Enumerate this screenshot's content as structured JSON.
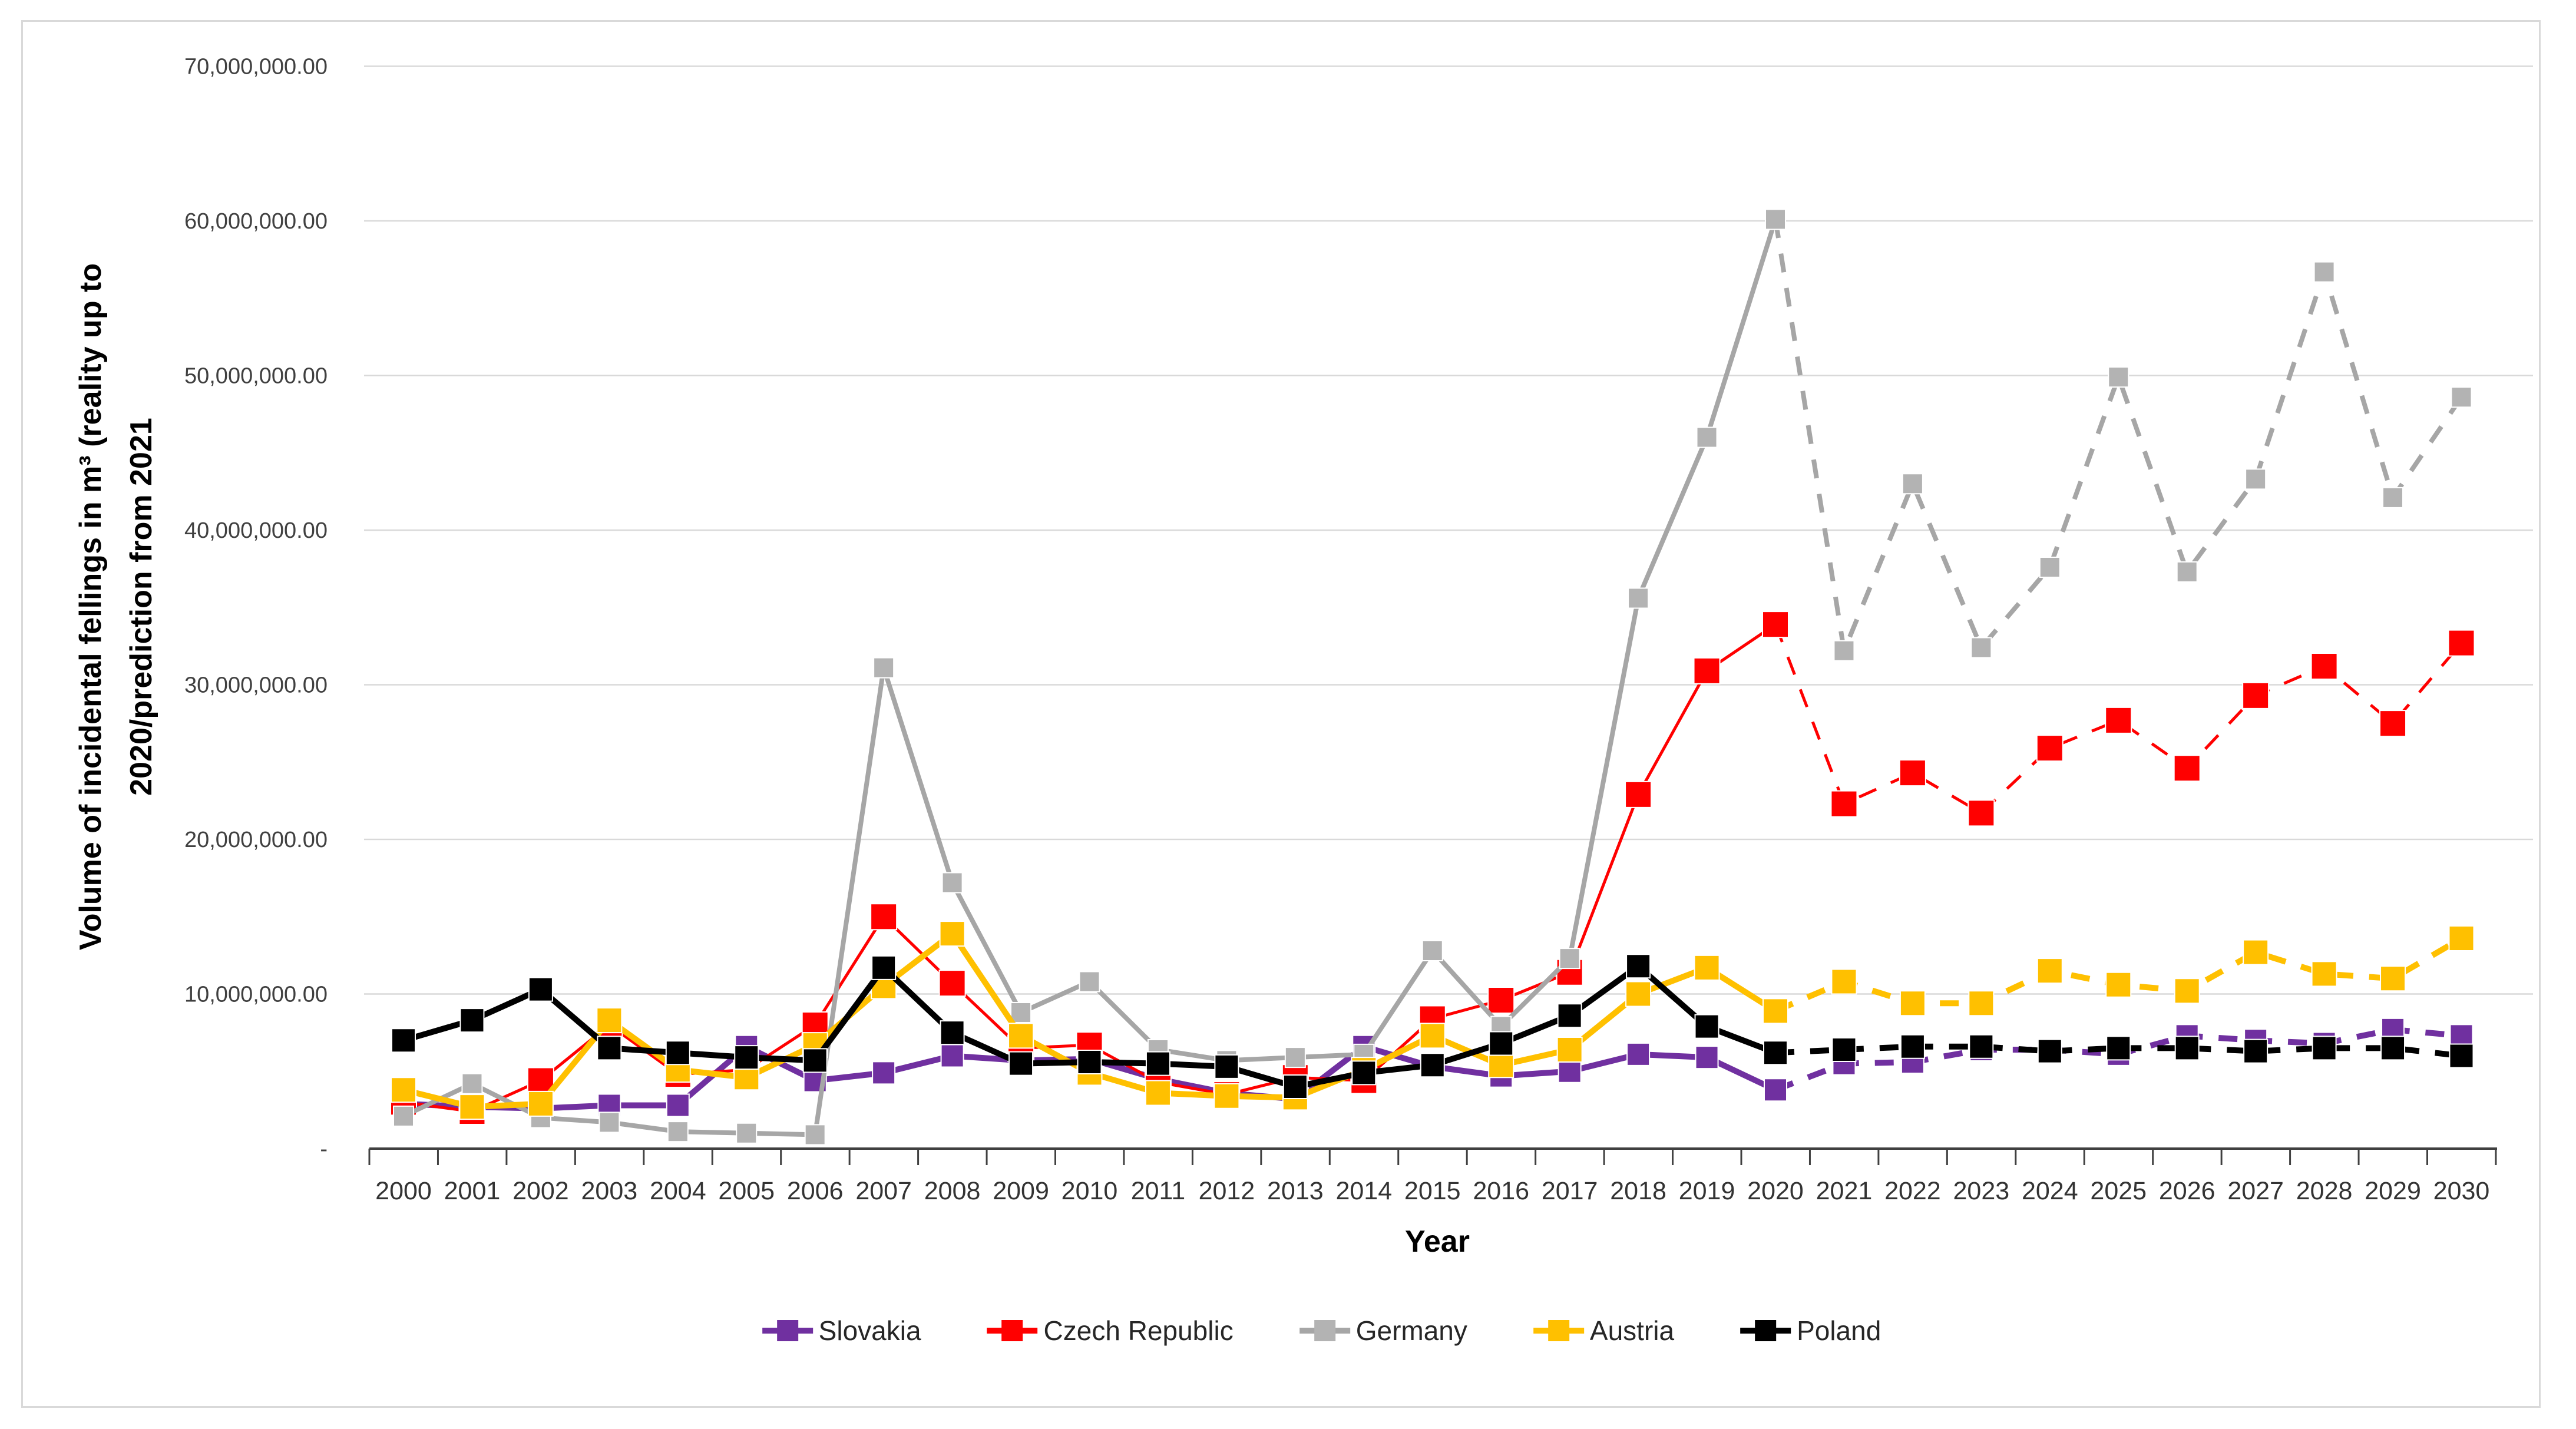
{
  "y_axis": {
    "title_line1": "Volume of incidental fellings in m³ (reality up to",
    "title_line2": "2020/prediction from 2021",
    "tick_values": [
      0,
      10000000,
      20000000,
      30000000,
      40000000,
      50000000,
      60000000,
      70000000
    ],
    "zero_label": "-",
    "tick_label_format": "#,##0.00"
  },
  "x_axis": {
    "title": "Year"
  },
  "chart_data": {
    "type": "line",
    "title": "",
    "xlabel": "Year",
    "ylabel": "Volume of incidental fellings in m³ (reality up to 2020/prediction from 2021",
    "ylim": [
      0,
      70000000
    ],
    "grid": "horizontal",
    "legend_position": "bottom",
    "prediction_dashed_from_year": 2020,
    "x": [
      2000,
      2001,
      2002,
      2003,
      2004,
      2005,
      2006,
      2007,
      2008,
      2009,
      2010,
      2011,
      2012,
      2013,
      2014,
      2015,
      2016,
      2017,
      2018,
      2019,
      2020,
      2021,
      2022,
      2023,
      2024,
      2025,
      2026,
      2027,
      2028,
      2029,
      2030
    ],
    "series": [
      {
        "name": "Slovakia",
        "color": "#7030A0",
        "values": [
          2900000,
          2700000,
          2600000,
          2800000,
          2800000,
          6600000,
          4400000,
          4900000,
          6000000,
          5700000,
          5800000,
          4500000,
          3600000,
          3200000,
          6600000,
          5300000,
          4700000,
          5000000,
          6100000,
          5900000,
          3800000,
          5500000,
          5600000,
          6400000,
          6400000,
          6100000,
          7300000,
          7000000,
          6800000,
          7700000,
          7300000
        ]
      },
      {
        "name": "Czech Republic",
        "color": "#FF0000",
        "values": [
          3000000,
          2400000,
          4400000,
          8000000,
          4800000,
          5100000,
          8000000,
          15000000,
          10700000,
          6500000,
          6700000,
          4300000,
          3500000,
          4600000,
          4400000,
          8400000,
          9600000,
          11400000,
          22900000,
          30900000,
          33900000,
          22300000,
          24300000,
          21700000,
          25900000,
          27700000,
          24600000,
          29300000,
          31200000,
          27500000,
          32700000
        ]
      },
      {
        "name": "Germany",
        "color": "#A6A6A6",
        "marker_color": "#B3B3B3",
        "values": [
          2100000,
          4200000,
          2000000,
          1700000,
          1100000,
          1000000,
          900000,
          31100000,
          17200000,
          8800000,
          10800000,
          6400000,
          5700000,
          5900000,
          6100000,
          12800000,
          7900000,
          12300000,
          35600000,
          46000000,
          60100000,
          32200000,
          43000000,
          32400000,
          37600000,
          49900000,
          37300000,
          43300000,
          56700000,
          42100000,
          48600000
        ]
      },
      {
        "name": "Austria",
        "color": "#FFC000",
        "values": [
          3800000,
          2700000,
          2900000,
          8300000,
          5100000,
          4600000,
          6700000,
          10500000,
          13900000,
          7300000,
          4900000,
          3600000,
          3400000,
          3300000,
          5100000,
          7300000,
          5400000,
          6400000,
          10000000,
          11700000,
          8900000,
          10800000,
          9400000,
          9400000,
          11500000,
          10600000,
          10200000,
          12700000,
          11300000,
          11000000,
          13600000
        ]
      },
      {
        "name": "Poland",
        "color": "#000000",
        "values": [
          7000000,
          8300000,
          10300000,
          6500000,
          6200000,
          5900000,
          5700000,
          11700000,
          7500000,
          5500000,
          5600000,
          5500000,
          5300000,
          4000000,
          4900000,
          5400000,
          6800000,
          8600000,
          11800000,
          7900000,
          6200000,
          6400000,
          6600000,
          6600000,
          6300000,
          6500000,
          6500000,
          6300000,
          6500000,
          6500000,
          6000000
        ]
      }
    ]
  }
}
